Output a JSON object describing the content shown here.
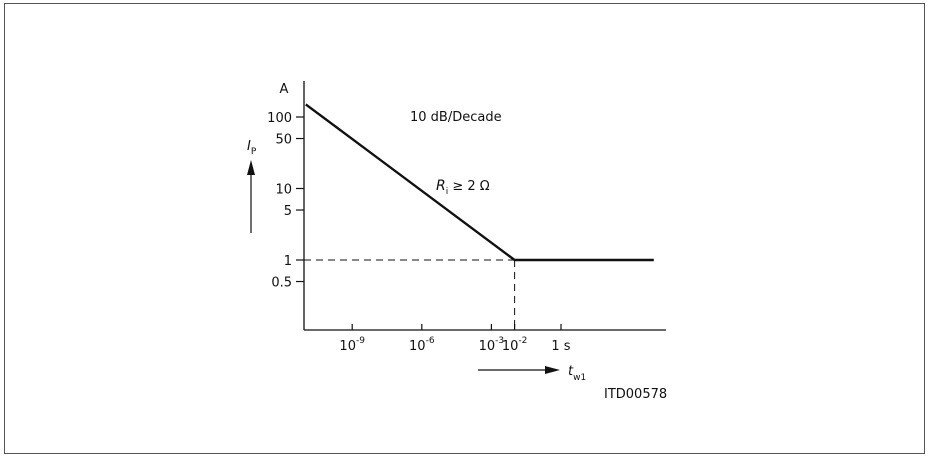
{
  "chart_data": {
    "type": "line",
    "x_scale": "log",
    "y_scale": "log",
    "y_unit": "A",
    "ylabel": "I",
    "ylabel_sub": "P",
    "xlabel": "t",
    "xlabel_sub": "w1",
    "y_ticks": [
      {
        "value": 100,
        "label": "100"
      },
      {
        "value": 50,
        "label": "50"
      },
      {
        "value": 10,
        "label": "10"
      },
      {
        "value": 5,
        "label": "5"
      },
      {
        "value": 1,
        "label": "1"
      },
      {
        "value": 0.5,
        "label": "0.5"
      }
    ],
    "x_ticks": [
      {
        "value": 1e-09,
        "base": "10",
        "exp": "-9"
      },
      {
        "value": 1e-06,
        "base": "10",
        "exp": "-6"
      },
      {
        "value": 0.001,
        "base": "10",
        "exp": "-3"
      },
      {
        "value": 0.01,
        "base": "10",
        "exp": "-2"
      },
      {
        "value": 1,
        "base": "1 s",
        "exp": ""
      }
    ],
    "series": [
      {
        "points": [
          [
            1e-11,
            150
          ],
          [
            0.01,
            1
          ],
          [
            10000.0,
            1
          ]
        ]
      }
    ],
    "reference_lines": [
      {
        "axis": "y",
        "value": 1,
        "style": "dashed"
      },
      {
        "axis": "x",
        "value": 0.01,
        "style": "dashed"
      }
    ],
    "annotations": [
      {
        "text": "10 dB/Decade"
      },
      {
        "text_main": "R",
        "text_sub": "i",
        "text_rest": " ≥ 2 Ω"
      }
    ],
    "figure_id": "ITD00578"
  }
}
